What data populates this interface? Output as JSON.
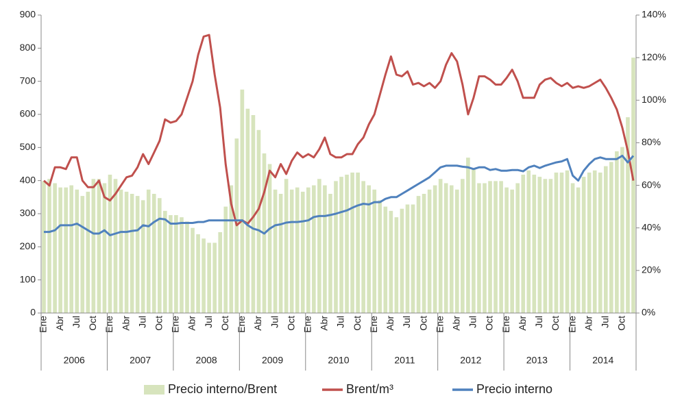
{
  "chart_data": {
    "type": "combo",
    "categories": [
      "Ene",
      null,
      null,
      "Abr",
      null,
      null,
      "Jul",
      null,
      null,
      "Oct",
      null,
      null,
      "Ene",
      null,
      null,
      "Abr",
      null,
      null,
      "Jul",
      null,
      null,
      "Oct",
      null,
      null,
      "Ene",
      null,
      null,
      "Abr",
      null,
      null,
      "Jul",
      null,
      null,
      "Oct",
      null,
      null,
      "Ene",
      null,
      null,
      "Abr",
      null,
      null,
      "Jul",
      null,
      null,
      "Oct",
      null,
      null,
      "Ene",
      null,
      null,
      "Abr",
      null,
      null,
      "Jul",
      null,
      null,
      "Oct",
      null,
      null,
      "Ene",
      null,
      null,
      "Abr",
      null,
      null,
      "Jul",
      null,
      null,
      "Oct",
      null,
      null,
      "Ene",
      null,
      null,
      "Abr",
      null,
      null,
      "Jul",
      null,
      null,
      "Oct",
      null,
      null,
      "Ene",
      null,
      null,
      "Abr",
      null,
      null,
      "Jul",
      null,
      null,
      "Oct",
      null,
      null,
      "Ene",
      null,
      null,
      "Abr",
      null,
      null,
      "Jul",
      null,
      null,
      "Oct",
      null,
      null
    ],
    "x_groups": [
      "2006",
      "2007",
      "2008",
      "2009",
      "2010",
      "2011",
      "2012",
      "2013",
      "2014"
    ],
    "series": [
      {
        "name": "Precio interno/Brent",
        "type": "bar",
        "axis": "y2",
        "color": "#d7e4bd",
        "values": [
          62,
          63,
          61,
          59,
          59,
          60,
          58,
          55,
          57,
          63,
          63,
          61,
          65,
          63,
          58,
          57,
          56,
          55,
          53,
          58,
          56,
          54,
          48,
          46,
          46,
          45,
          43,
          40,
          37,
          35,
          33,
          33,
          38,
          50,
          60,
          82,
          105,
          96,
          93,
          86,
          75,
          70,
          58,
          56,
          63,
          58,
          59,
          57,
          59,
          60,
          63,
          60,
          56,
          62,
          64,
          65,
          66,
          66,
          62,
          60,
          58,
          53,
          50,
          48,
          45,
          49,
          51,
          51,
          55,
          56,
          58,
          60,
          63,
          61,
          60,
          58,
          63,
          73,
          68,
          61,
          61,
          62,
          62,
          62,
          59,
          58,
          61,
          65,
          67,
          65,
          64,
          63,
          63,
          66,
          66,
          67,
          61,
          59,
          64,
          66,
          67,
          66,
          69,
          71,
          76,
          78,
          92,
          120
        ]
      },
      {
        "name": "Brent/m³",
        "type": "line",
        "color": "#c0504d",
        "values": [
          400,
          385,
          440,
          440,
          435,
          470,
          470,
          400,
          380,
          380,
          400,
          350,
          340,
          360,
          385,
          410,
          415,
          440,
          480,
          450,
          485,
          520,
          585,
          575,
          580,
          600,
          650,
          700,
          780,
          835,
          840,
          720,
          620,
          450,
          330,
          265,
          280,
          270,
          290,
          315,
          365,
          430,
          410,
          450,
          420,
          460,
          485,
          470,
          480,
          470,
          495,
          530,
          480,
          470,
          470,
          480,
          480,
          510,
          530,
          570,
          600,
          660,
          720,
          775,
          720,
          715,
          730,
          690,
          695,
          685,
          695,
          680,
          700,
          750,
          785,
          760,
          690,
          600,
          650,
          715,
          715,
          705,
          690,
          690,
          710,
          735,
          700,
          650,
          650,
          650,
          690,
          705,
          710,
          695,
          685,
          695,
          680,
          685,
          680,
          685,
          695,
          705,
          680,
          650,
          615,
          560,
          490,
          400
        ]
      },
      {
        "name": "Precio interno",
        "type": "line",
        "color": "#4f81bd",
        "values": [
          245,
          245,
          250,
          265,
          265,
          265,
          270,
          260,
          250,
          240,
          240,
          250,
          235,
          240,
          245,
          245,
          248,
          250,
          265,
          262,
          275,
          285,
          283,
          270,
          270,
          272,
          272,
          272,
          275,
          275,
          280,
          280,
          280,
          280,
          280,
          280,
          280,
          265,
          255,
          250,
          240,
          255,
          265,
          268,
          273,
          275,
          275,
          277,
          280,
          290,
          293,
          293,
          296,
          300,
          305,
          310,
          318,
          325,
          330,
          328,
          335,
          335,
          345,
          350,
          350,
          360,
          370,
          380,
          390,
          400,
          410,
          425,
          440,
          445,
          445,
          445,
          442,
          440,
          435,
          440,
          440,
          432,
          435,
          430,
          430,
          432,
          432,
          428,
          440,
          445,
          438,
          445,
          450,
          455,
          458,
          465,
          415,
          400,
          430,
          450,
          465,
          470,
          465,
          465,
          465,
          475,
          455,
          475
        ]
      }
    ],
    "ylim": [
      0,
      900
    ],
    "yticks": [
      0,
      100,
      200,
      300,
      400,
      500,
      600,
      700,
      800,
      900
    ],
    "y2lim": [
      0,
      140
    ],
    "y2ticks": [
      {
        "value": 0,
        "label": "0%"
      },
      {
        "value": 20,
        "label": "20%"
      },
      {
        "value": 40,
        "label": "40%"
      },
      {
        "value": 60,
        "label": "60%"
      },
      {
        "value": 80,
        "label": "80%"
      },
      {
        "value": 100,
        "label": "100%"
      },
      {
        "value": 120,
        "label": "120%"
      },
      {
        "value": 140,
        "label": "140%"
      }
    ],
    "legend": "bottom"
  }
}
